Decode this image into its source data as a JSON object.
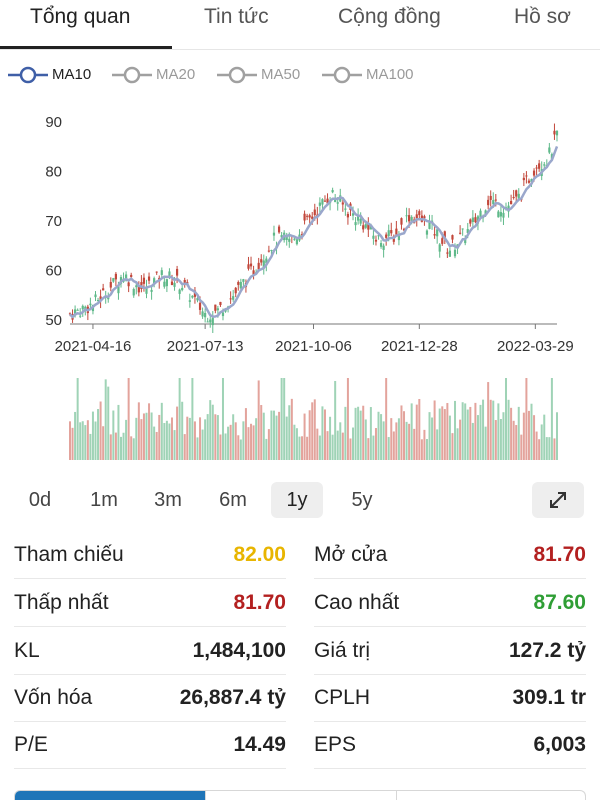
{
  "tabs": [
    {
      "label": "Tổng quan",
      "active": true
    },
    {
      "label": "Tin tức",
      "active": false
    },
    {
      "label": "Cộng đồng",
      "active": false
    },
    {
      "label": "Hồ sơ",
      "active": false
    }
  ],
  "legend": [
    {
      "label": "MA10",
      "active": true
    },
    {
      "label": "MA20",
      "active": false
    },
    {
      "label": "MA50",
      "active": false
    },
    {
      "label": "MA100",
      "active": false
    }
  ],
  "colors": {
    "up": "#5fb98a",
    "down": "#c2473b",
    "ma_line": "#9aa7cc",
    "legend_active": "#3f5fa7",
    "legend_inactive": "#a0a0a0",
    "reference": "#e8b500",
    "red_value": "#b32020",
    "green_value": "#2f9e35",
    "tab_selected_bar": "#1f75b8"
  },
  "chart_data": {
    "type": "candlestick",
    "y_ticks": [
      "90",
      "80",
      "70",
      "60",
      "50"
    ],
    "ylim": [
      49,
      91
    ],
    "x_ticks": [
      "2021-04-16",
      "2021-07-13",
      "2021-10-06",
      "2021-12-28",
      "2022-03-29"
    ],
    "x_range": [
      "2021-03-29",
      "2022-04-15"
    ],
    "tick_dates": [
      "2021-04-16",
      "2021-07-13",
      "2021-10-06",
      "2021-12-28",
      "2022-03-29"
    ],
    "close_anchors": [
      [
        "2021-03-29",
        51
      ],
      [
        "2021-04-16",
        53
      ],
      [
        "2021-05-10",
        59
      ],
      [
        "2021-05-25",
        56
      ],
      [
        "2021-06-10",
        59
      ],
      [
        "2021-06-25",
        57
      ],
      [
        "2021-07-13",
        51
      ],
      [
        "2021-07-22",
        51.5
      ],
      [
        "2021-08-05",
        55
      ],
      [
        "2021-08-20",
        60
      ],
      [
        "2021-09-05",
        66
      ],
      [
        "2021-09-20",
        66
      ],
      [
        "2021-10-06",
        71
      ],
      [
        "2021-10-20",
        75.5
      ],
      [
        "2021-11-01",
        72
      ],
      [
        "2021-11-12",
        70
      ],
      [
        "2021-11-25",
        66
      ],
      [
        "2021-12-10",
        67
      ],
      [
        "2021-12-20",
        71
      ],
      [
        "2022-01-05",
        69
      ],
      [
        "2022-01-20",
        64
      ],
      [
        "2022-02-05",
        68
      ],
      [
        "2022-02-20",
        74
      ],
      [
        "2022-03-05",
        72.5
      ],
      [
        "2022-03-15",
        74
      ],
      [
        "2022-03-29",
        81
      ],
      [
        "2022-04-08",
        82.5
      ],
      [
        "2022-04-15",
        87
      ]
    ],
    "volume": {
      "note": "relative daily volume bars, same dates as candles"
    }
  },
  "timeframes": [
    {
      "label": "0d",
      "selected": false
    },
    {
      "label": "1m",
      "selected": false
    },
    {
      "label": "3m",
      "selected": false
    },
    {
      "label": "6m",
      "selected": false
    },
    {
      "label": "1y",
      "selected": true
    },
    {
      "label": "5y",
      "selected": false
    }
  ],
  "stats": {
    "tham_chieu": {
      "label": "Tham chiếu",
      "value": "82.00"
    },
    "mo_cua": {
      "label": "Mở cửa",
      "value": "81.70"
    },
    "thap_nhat": {
      "label": "Thấp nhất",
      "value": "81.70"
    },
    "cao_nhat": {
      "label": "Cao nhất",
      "value": "87.60"
    },
    "kl": {
      "label": "KL",
      "value": "1,484,100"
    },
    "gia_tri": {
      "label": "Giá trị",
      "value": "127.2 tỷ"
    },
    "von_hoa": {
      "label": "Vốn hóa",
      "value": "26,887.4 tỷ"
    },
    "cplh": {
      "label": "CPLH",
      "value": "309.1 tr"
    },
    "pe": {
      "label": "P/E",
      "value": "14.49"
    },
    "eps": {
      "label": "EPS",
      "value": "6,003"
    }
  }
}
